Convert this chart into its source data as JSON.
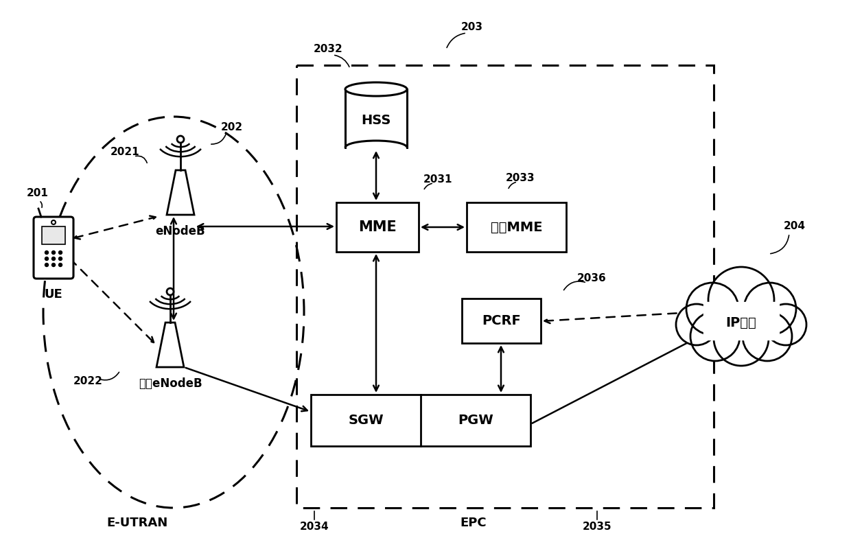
{
  "background_color": "#ffffff",
  "label_201": "201",
  "label_202": "202",
  "label_203": "203",
  "label_204": "204",
  "label_2021": "2021",
  "label_2022": "2022",
  "label_2031": "2031",
  "label_2032": "2032",
  "label_2033": "2033",
  "label_2034": "2034",
  "label_2035": "2035",
  "label_2036": "2036",
  "text_UE": "UE",
  "text_eNodeB": "eNodeB",
  "text_other_eNodeB": "其它eNodeB",
  "text_EUTRAN": "E-UTRAN",
  "text_EPC": "EPC",
  "text_HSS": "HSS",
  "text_MME": "MME",
  "text_otherMME": "其它MME",
  "text_PCRF": "PCRF",
  "text_SGW": "SGW",
  "text_PGW": "PGW",
  "text_IPservice": "IP业务",
  "line_color": "#000000"
}
